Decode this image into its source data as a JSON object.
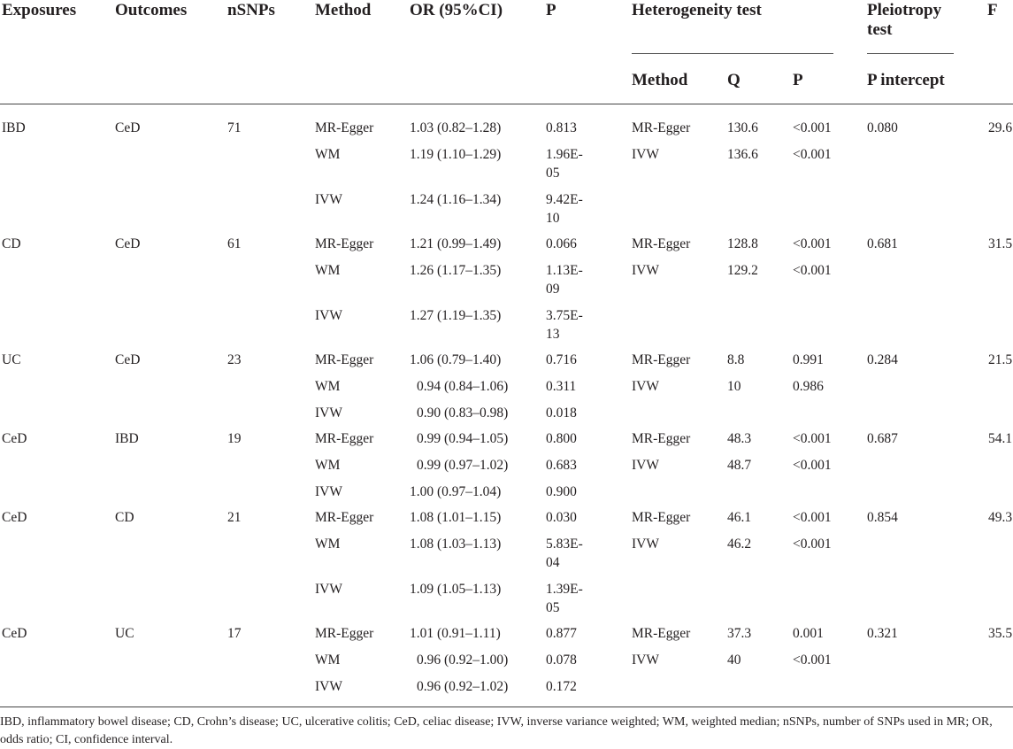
{
  "headers": {
    "exposures": "Exposures",
    "outcomes": "Outcomes",
    "nsnps": "nSNPs",
    "method": "Method",
    "or": "OR (95%CI)",
    "p": "P",
    "heterogeneity": "Heterogeneity test",
    "pleiotropy_line1": "Pleiotropy",
    "pleiotropy_line2": "test",
    "f": "F"
  },
  "subheaders": {
    "method": "Method",
    "q": "Q",
    "p": "P",
    "p_intercept": "P intercept"
  },
  "groups": [
    {
      "exposure": "IBD",
      "outcome": "CeD",
      "nsnps": "71",
      "pleiotropy": "0.080",
      "f": "29.6",
      "rows": [
        {
          "method": "MR-Egger",
          "or": "1.03 (0.82–1.28)",
          "p1": "0.813",
          "p2": "",
          "het_method": "MR-Egger",
          "q": "130.6",
          "het_p": "<0.001"
        },
        {
          "method": "WM",
          "or": "1.19 (1.10–1.29)",
          "p1": "1.96E-",
          "p2": "05",
          "het_method": "IVW",
          "q": "136.6",
          "het_p": "<0.001"
        },
        {
          "method": "IVW",
          "or": "1.24 (1.16–1.34)",
          "p1": "9.42E-",
          "p2": "10",
          "het_method": "",
          "q": "",
          "het_p": ""
        }
      ]
    },
    {
      "exposure": "CD",
      "outcome": "CeD",
      "nsnps": "61",
      "pleiotropy": "0.681",
      "f": "31.5",
      "rows": [
        {
          "method": "MR-Egger",
          "or": "1.21 (0.99–1.49)",
          "p1": "0.066",
          "p2": "",
          "het_method": "MR-Egger",
          "q": "128.8",
          "het_p": "<0.001"
        },
        {
          "method": "WM",
          "or": "1.26 (1.17–1.35)",
          "p1": "1.13E-",
          "p2": "09",
          "het_method": "IVW",
          "q": "129.2",
          "het_p": "<0.001"
        },
        {
          "method": "IVW",
          "or": "1.27 (1.19–1.35)",
          "p1": "3.75E-",
          "p2": "13",
          "het_method": "",
          "q": "",
          "het_p": ""
        }
      ]
    },
    {
      "exposure": "UC",
      "outcome": "CeD",
      "nsnps": "23",
      "pleiotropy": "0.284",
      "f": "21.5",
      "rows": [
        {
          "method": "MR-Egger",
          "or": "1.06 (0.79–1.40)",
          "p1": "0.716",
          "p2": "",
          "het_method": "MR-Egger",
          "q": "8.8",
          "het_p": "0.991"
        },
        {
          "method": "WM",
          "or": "0.94 (0.84–1.06)",
          "p1": "0.311",
          "p2": "",
          "het_method": "IVW",
          "q": "10",
          "het_p": "0.986"
        },
        {
          "method": "IVW",
          "or": "0.90 (0.83–0.98)",
          "p1": "0.018",
          "p2": "",
          "het_method": "",
          "q": "",
          "het_p": ""
        }
      ]
    },
    {
      "exposure": "CeD",
      "outcome": "IBD",
      "nsnps": "19",
      "pleiotropy": "0.687",
      "f": "54.1",
      "rows": [
        {
          "method": "MR-Egger",
          "or": "0.99 (0.94–1.05)",
          "p1": "0.800",
          "p2": "",
          "het_method": "MR-Egger",
          "q": "48.3",
          "het_p": "<0.001"
        },
        {
          "method": "WM",
          "or": "0.99 (0.97–1.02)",
          "p1": "0.683",
          "p2": "",
          "het_method": "IVW",
          "q": "48.7",
          "het_p": "<0.001"
        },
        {
          "method": "IVW",
          "or": "1.00 (0.97–1.04)",
          "p1": "0.900",
          "p2": "",
          "het_method": "",
          "q": "",
          "het_p": ""
        }
      ]
    },
    {
      "exposure": "CeD",
      "outcome": "CD",
      "nsnps": "21",
      "pleiotropy": "0.854",
      "f": "49.3",
      "rows": [
        {
          "method": "MR-Egger",
          "or": "1.08 (1.01–1.15)",
          "p1": "0.030",
          "p2": "",
          "het_method": "MR-Egger",
          "q": "46.1",
          "het_p": "<0.001"
        },
        {
          "method": "WM",
          "or": "1.08 (1.03–1.13)",
          "p1": "5.83E-",
          "p2": "04",
          "het_method": "IVW",
          "q": "46.2",
          "het_p": "<0.001"
        },
        {
          "method": "IVW",
          "or": "1.09 (1.05–1.13)",
          "p1": "1.39E-",
          "p2": "05",
          "het_method": "",
          "q": "",
          "het_p": ""
        }
      ]
    },
    {
      "exposure": "CeD",
      "outcome": "UC",
      "nsnps": "17",
      "pleiotropy": "0.321",
      "f": "35.5",
      "rows": [
        {
          "method": "MR-Egger",
          "or": "1.01 (0.91–1.11)",
          "p1": "0.877",
          "p2": "",
          "het_method": "MR-Egger",
          "q": "37.3",
          "het_p": "0.001"
        },
        {
          "method": "WM",
          "or": "0.96 (0.92–1.00)",
          "p1": "0.078",
          "p2": "",
          "het_method": "IVW",
          "q": "40",
          "het_p": "<0.001"
        },
        {
          "method": "IVW",
          "or": "0.96 (0.92–1.02)",
          "p1": "0.172",
          "p2": "",
          "het_method": "",
          "q": "",
          "het_p": ""
        }
      ]
    }
  ],
  "footnote": "IBD, inflammatory bowel disease; CD, Crohn’s disease; UC, ulcerative colitis; CeD, celiac disease; IVW, inverse variance weighted; WM, weighted median; nSNPs, number of SNPs used in MR; OR, odds ratio; CI, confidence interval."
}
